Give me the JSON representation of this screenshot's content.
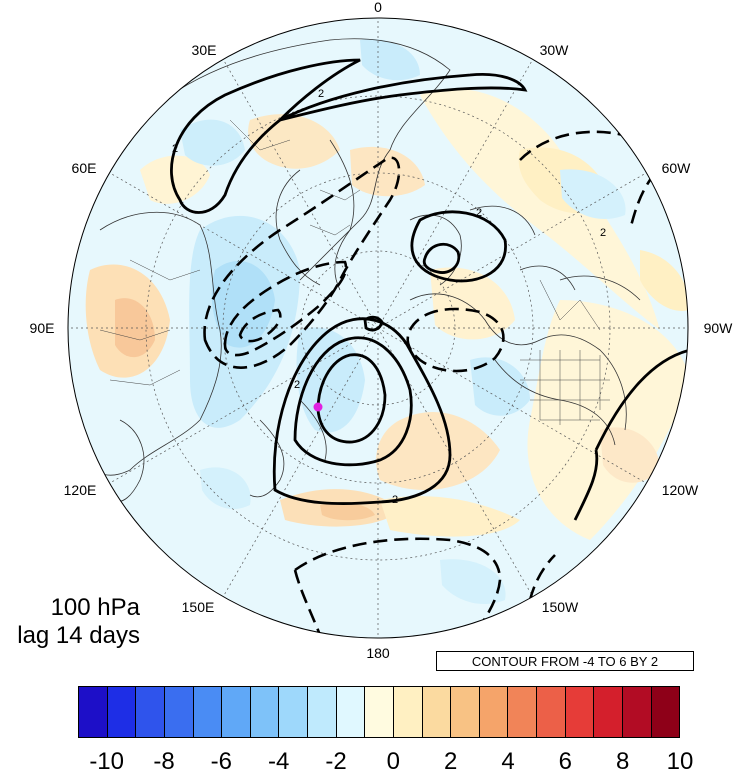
{
  "map": {
    "projection": "north-polar-stereographic",
    "longitude_labels": [
      {
        "lon": "0",
        "id": "lon-0"
      },
      {
        "lon": "30W",
        "id": "lon-30w"
      },
      {
        "lon": "60W",
        "id": "lon-60w"
      },
      {
        "lon": "90W",
        "id": "lon-90w"
      },
      {
        "lon": "120W",
        "id": "lon-120w"
      },
      {
        "lon": "150W",
        "id": "lon-150w"
      },
      {
        "lon": "180",
        "id": "lon-180"
      },
      {
        "lon": "150E",
        "id": "lon-150e"
      },
      {
        "lon": "120E",
        "id": "lon-120e"
      },
      {
        "lon": "90E",
        "id": "lon-90e"
      },
      {
        "lon": "60E",
        "id": "lon-60e"
      },
      {
        "lon": "30E",
        "id": "lon-30e"
      }
    ],
    "contour_label_value": "2",
    "marker_color": "#e020e0"
  },
  "panel": {
    "level": "100 hPa",
    "lag": "lag 14 days"
  },
  "contour_info": "CONTOUR FROM -4 TO 6 BY 2",
  "colorbar": {
    "colors": [
      "#1d0fc8",
      "#1e2ee6",
      "#2f54ec",
      "#3a6ef0",
      "#4a8cf4",
      "#60a8f7",
      "#7ec2f9",
      "#9ed8fb",
      "#bfeafd",
      "#e0f8ff",
      "#fffbe0",
      "#fff0c2",
      "#fbdaa0",
      "#f8c284",
      "#f5a46a",
      "#f18458",
      "#ec6048",
      "#e63c38",
      "#d41f2c",
      "#b20c24",
      "#8e0018"
    ],
    "tick_labels": [
      "-10",
      "-8",
      "-6",
      "-4",
      "-2",
      "0",
      "2",
      "4",
      "6",
      "8",
      "10"
    ]
  }
}
